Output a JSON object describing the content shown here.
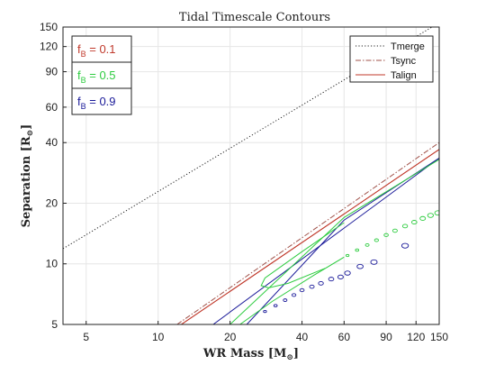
{
  "chart_data": {
    "type": "line",
    "title": "Tidal Timescale Contours",
    "xlabel": "WR Mass [M",
    "xlabel_sub": "⊙",
    "xlabel_close": "]",
    "ylabel": "Separation [R",
    "ylabel_sub": "⊙",
    "ylabel_close": "]",
    "xscale": "log",
    "yscale": "log",
    "xlim": [
      4,
      150
    ],
    "ylim": [
      5,
      150
    ],
    "xticks": [
      5,
      10,
      20,
      40,
      60,
      90,
      120,
      150
    ],
    "yticks": [
      5,
      10,
      20,
      40,
      60,
      90,
      120,
      150
    ],
    "grid": true,
    "legend_position": "top-right",
    "series": [
      {
        "name": "Tmerge",
        "color": "#222222",
        "style": "dotted",
        "x": [
          4,
          140
        ],
        "y": [
          11.9,
          150
        ]
      },
      {
        "name": "Tsync",
        "color": "#a0524a",
        "style": "dashdot",
        "x": [
          12.0,
          150
        ],
        "y": [
          5,
          40
        ]
      },
      {
        "name": "Talign",
        "color": "#c0392b",
        "style": "solid",
        "x": [
          12.5,
          150
        ],
        "y": [
          5,
          37
        ]
      }
    ],
    "contours": [
      {
        "group": "0.1",
        "color": "#c0392b",
        "kind": "line",
        "x": [
          12.5,
          150
        ],
        "y": [
          5,
          37
        ]
      },
      {
        "group": "0.9",
        "color": "#1a1a99",
        "kind": "line",
        "x": [
          17.0,
          150
        ],
        "y": [
          5,
          33.5
        ]
      },
      {
        "group": "0.9",
        "color": "#1a1a99",
        "kind": "line",
        "x": [
          23.5,
          60,
          150
        ],
        "y": [
          5,
          16.5,
          33.5
        ]
      },
      {
        "group": "0.5",
        "color": "#2ecc40",
        "kind": "line",
        "x": [
          20.0,
          60,
          150
        ],
        "y": [
          5,
          17.0,
          33.0
        ]
      },
      {
        "group": "0.5",
        "color": "#2ecc40",
        "kind": "line",
        "x": [
          60,
          40,
          28,
          27,
          29,
          35,
          50
        ],
        "y": [
          16.0,
          11.5,
          8.5,
          7.8,
          7.6,
          8.0,
          9.5
        ]
      },
      {
        "group": "0.5",
        "color": "#2ecc40",
        "kind": "line",
        "x": [
          22,
          30,
          45,
          60
        ],
        "y": [
          5,
          6.5,
          8.8,
          10.8
        ]
      },
      {
        "group": "0.5",
        "color": "#2ecc40",
        "kind": "dots",
        "x": [
          62,
          68,
          75,
          82,
          90,
          98,
          108,
          118,
          128,
          138,
          148
        ],
        "y": [
          11.0,
          11.7,
          12.4,
          13.1,
          13.9,
          14.6,
          15.4,
          16.1,
          16.8,
          17.4,
          17.9
        ]
      },
      {
        "group": "0.9",
        "color": "#1a1a99",
        "kind": "dots",
        "x": [
          28,
          31,
          34,
          37,
          40,
          44,
          48,
          53,
          58,
          62,
          70,
          80,
          108
        ],
        "y": [
          5.8,
          6.2,
          6.6,
          7.0,
          7.4,
          7.7,
          8.0,
          8.4,
          8.6,
          9.0,
          9.7,
          10.2,
          12.3
        ]
      }
    ],
    "fb_boxes": [
      {
        "label": "f",
        "sub": "B",
        "value": " = 0.1",
        "color": "#c0392b"
      },
      {
        "label": "f",
        "sub": "B",
        "value": " = 0.5",
        "color": "#2ecc40"
      },
      {
        "label": "f",
        "sub": "B",
        "value": " = 0.9",
        "color": "#1a1a99"
      }
    ]
  }
}
